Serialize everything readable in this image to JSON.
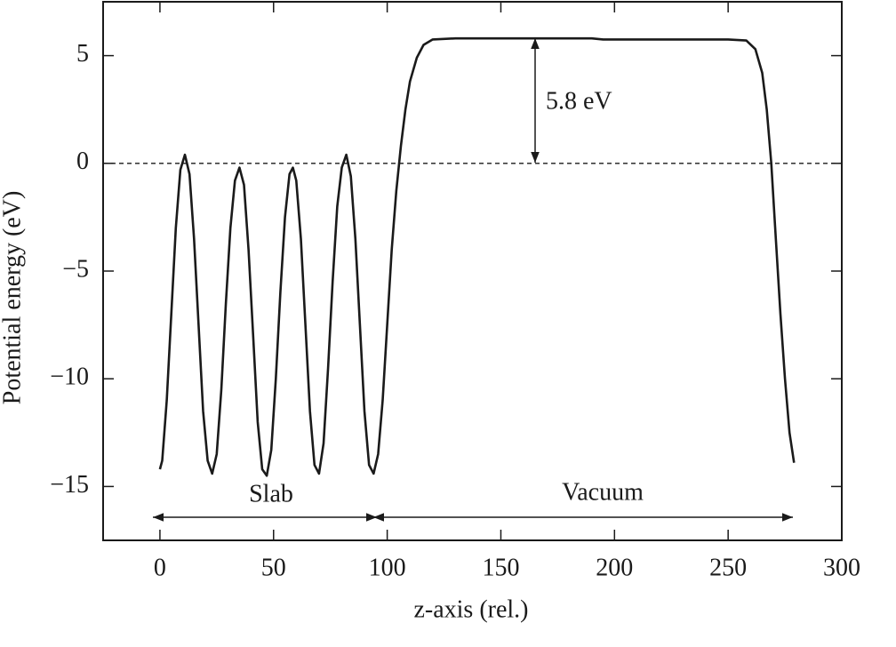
{
  "chart_data": {
    "type": "line",
    "xlabel": "z-axis (rel.)",
    "ylabel": "Potential energy (eV)",
    "annotations": [
      "5.8 eV",
      "Slab",
      "Vacuum"
    ],
    "color": "#1a1a1a",
    "x": [
      0,
      1,
      3,
      5,
      7,
      9,
      11,
      13,
      15,
      17,
      19,
      21,
      23,
      25,
      27,
      29,
      31,
      33,
      35,
      37,
      39,
      41,
      43,
      45,
      47,
      49,
      51,
      53,
      55,
      57,
      58.5,
      60,
      62,
      64,
      66,
      68,
      70,
      72,
      74,
      76,
      78,
      80,
      82,
      84,
      86,
      88,
      90,
      92,
      94,
      96,
      98,
      100,
      102,
      104,
      106,
      108,
      110,
      113,
      116,
      120,
      130,
      190,
      195,
      250,
      258,
      262,
      265,
      267,
      269,
      271,
      273,
      275,
      277,
      279
    ],
    "values": [
      -14.2,
      -13.8,
      -11,
      -7,
      -3,
      -0.3,
      0.4,
      -0.5,
      -3.5,
      -7.5,
      -11.5,
      -13.8,
      -14.4,
      -13.5,
      -10.5,
      -6.5,
      -3,
      -0.8,
      -0.2,
      -1,
      -4,
      -8,
      -12,
      -14.2,
      -14.5,
      -13.3,
      -10,
      -6,
      -2.5,
      -0.5,
      -0.2,
      -0.8,
      -3.5,
      -7.5,
      -11.5,
      -14,
      -14.4,
      -13,
      -9.5,
      -5.5,
      -2,
      -0.2,
      0.4,
      -0.6,
      -3.5,
      -7.5,
      -11.5,
      -14,
      -14.4,
      -13.5,
      -11,
      -7.5,
      -4,
      -1.3,
      0.8,
      2.5,
      3.8,
      4.9,
      5.5,
      5.75,
      5.8,
      5.8,
      5.75,
      5.75,
      5.7,
      5.3,
      4.2,
      2.5,
      0,
      -3.5,
      -7,
      -10,
      -12.5,
      -13.9
    ],
    "xlim": [
      -25,
      300
    ],
    "ylim": [
      -17.5,
      7.5
    ],
    "xticks": [
      0,
      50,
      100,
      150,
      200,
      250,
      300
    ],
    "yticks": [
      5,
      0,
      {
        "value": -5,
        "label": "−5"
      },
      {
        "value": -10,
        "label": "−10"
      },
      {
        "value": -15,
        "label": "−15"
      }
    ]
  }
}
